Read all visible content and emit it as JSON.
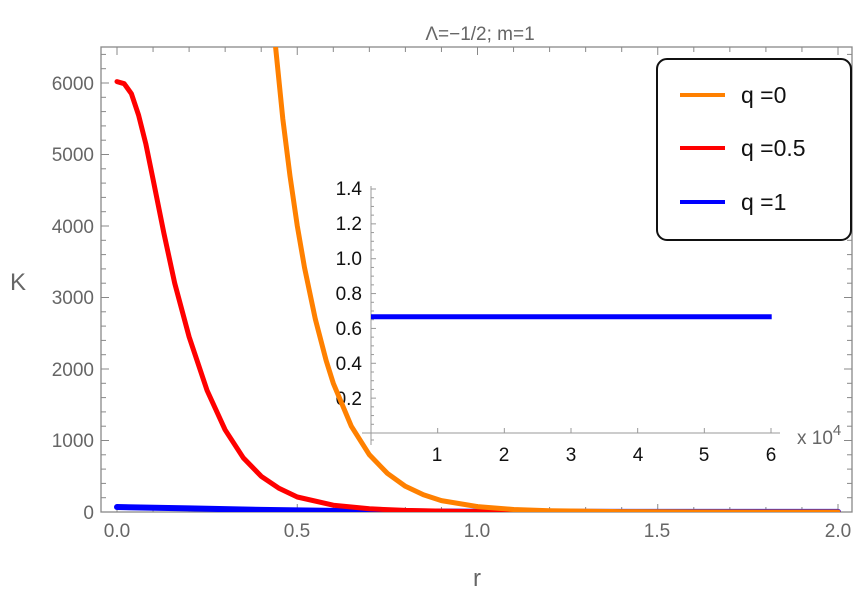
{
  "chart_data": {
    "type": "line",
    "title": "Λ=−1/2; m=1",
    "xlabel": "r",
    "ylabel": "K",
    "xlim": [
      -0.03,
      2.03
    ],
    "ylim": [
      0,
      6500
    ],
    "x_ticks": [
      "0.0",
      "0.5",
      "1.0",
      "1.5",
      "2.0"
    ],
    "y_ticks": [
      "0",
      "1000",
      "2000",
      "3000",
      "4000",
      "5000",
      "6000"
    ],
    "grid": false,
    "legend_position": "upper-right",
    "series": [
      {
        "name": "q =0",
        "color": "#FF8000",
        "x": [
          0.44,
          0.46,
          0.48,
          0.5,
          0.52,
          0.55,
          0.58,
          0.6,
          0.65,
          0.7,
          0.75,
          0.8,
          0.85,
          0.9,
          1.0,
          1.1,
          1.2,
          1.4,
          1.6,
          2.0
        ],
        "y": [
          6500,
          5500,
          4700,
          4000,
          3420,
          2700,
          2120,
          1800,
          1200,
          800,
          540,
          360,
          240,
          160,
          75,
          35,
          18,
          6,
          2,
          0
        ]
      },
      {
        "name": "q =0.5",
        "color": "#FF0000",
        "x": [
          0.0,
          0.02,
          0.04,
          0.06,
          0.08,
          0.1,
          0.13,
          0.16,
          0.2,
          0.25,
          0.3,
          0.35,
          0.4,
          0.45,
          0.5,
          0.6,
          0.7,
          0.8,
          0.9,
          1.0,
          1.2,
          1.5,
          2.0
        ],
        "y": [
          6020,
          5990,
          5850,
          5550,
          5150,
          4650,
          3900,
          3200,
          2450,
          1700,
          1150,
          760,
          500,
          330,
          210,
          95,
          45,
          22,
          12,
          6,
          2,
          0,
          0
        ]
      },
      {
        "name": "q =1",
        "color": "#0000FF",
        "x": [
          0.0,
          0.2,
          0.4,
          0.6,
          0.8,
          1.0,
          1.5,
          2.0
        ],
        "y": [
          70,
          50,
          30,
          15,
          8,
          4,
          2,
          1
        ]
      }
    ],
    "inset": {
      "x_ticks": [
        "1",
        "2",
        "3",
        "4",
        "5",
        "6"
      ],
      "x_multiplier": "x 10",
      "x_exponent": "4",
      "y_ticks": [
        "0.2",
        "0.4",
        "0.6",
        "0.8",
        "1.0",
        "1.2",
        "1.4"
      ],
      "xlim": [
        0,
        6
      ],
      "ylim": [
        0,
        1.4
      ],
      "series": [
        {
          "name": "q =1",
          "color": "#0000FF",
          "x": [
            0,
            6.01
          ],
          "y": [
            0.667,
            0.667
          ]
        }
      ]
    }
  },
  "legend": {
    "items": [
      {
        "label": "q =0",
        "color": "#FF8000"
      },
      {
        "label": "q =0.5",
        "color": "#FF0000"
      },
      {
        "label": "q =1",
        "color": "#0000FF"
      }
    ]
  }
}
